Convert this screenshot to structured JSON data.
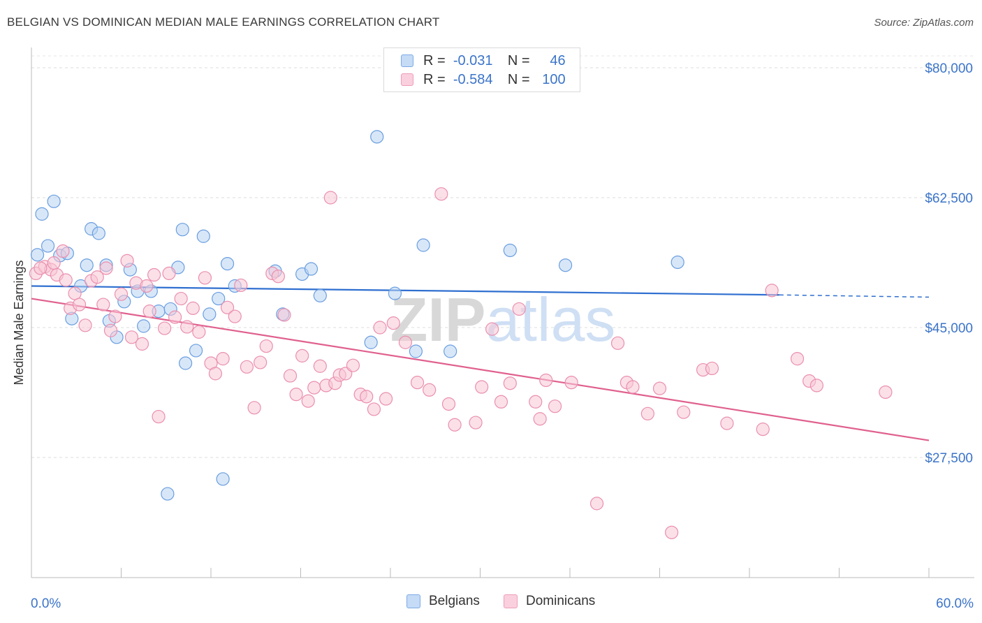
{
  "title": "BELGIAN VS DOMINICAN MEDIAN MALE EARNINGS CORRELATION CHART",
  "source": "Source: ZipAtlas.com",
  "watermark": "ZIPatlas",
  "legend": {
    "rows": [
      {
        "r_label": "R =",
        "r_value": "-0.031",
        "n_label": "N =",
        "n_value": "46",
        "color": "#a9c8ef"
      },
      {
        "r_label": "R =",
        "r_value": "-0.584",
        "n_label": "N =",
        "n_value": "100",
        "color": "#f5b8cb"
      }
    ]
  },
  "bottom_legend": [
    {
      "label": "Belgians",
      "color": "#a9c8ef"
    },
    {
      "label": "Dominicans",
      "color": "#f5b8cb"
    }
  ],
  "chart_data": {
    "type": "scatter",
    "ylabel": "Median Male Earnings",
    "xlabel": "",
    "xlim": [
      0,
      60
    ],
    "ylim": [
      10000,
      82000
    ],
    "x_tick_labels": {
      "left": "0.0%",
      "right": "60.0%"
    },
    "y_ticks": [
      {
        "value": 80000,
        "label": "$80,000"
      },
      {
        "value": 62500,
        "label": "$62,500"
      },
      {
        "value": 45000,
        "label": "$45,000"
      },
      {
        "value": 27500,
        "label": "$27,500"
      }
    ],
    "series": [
      {
        "name": "Belgians",
        "color": "#6a9ee0",
        "fill": "#b8d3f3",
        "trend": {
          "x0": 0,
          "y0": 50600,
          "x1": 50,
          "y1": 49400,
          "dash_to_x": 60,
          "dash_to_y": 49100,
          "color": "#2f6fd0"
        },
        "points": [
          [
            0.4,
            54800
          ],
          [
            0.7,
            60300
          ],
          [
            1.1,
            56000
          ],
          [
            1.5,
            62000
          ],
          [
            1.9,
            54700
          ],
          [
            2.4,
            55000
          ],
          [
            2.7,
            46200
          ],
          [
            3.3,
            50600
          ],
          [
            3.7,
            53400
          ],
          [
            4.0,
            58300
          ],
          [
            4.5,
            57700
          ],
          [
            5.0,
            53400
          ],
          [
            5.2,
            45900
          ],
          [
            5.7,
            43700
          ],
          [
            6.2,
            48500
          ],
          [
            6.6,
            52800
          ],
          [
            7.1,
            49900
          ],
          [
            7.5,
            45200
          ],
          [
            8.0,
            49900
          ],
          [
            8.5,
            47200
          ],
          [
            9.1,
            22600
          ],
          [
            9.3,
            47500
          ],
          [
            9.8,
            53100
          ],
          [
            10.1,
            58200
          ],
          [
            10.3,
            40200
          ],
          [
            11.0,
            41900
          ],
          [
            11.5,
            57300
          ],
          [
            11.9,
            46800
          ],
          [
            12.5,
            48900
          ],
          [
            12.8,
            24600
          ],
          [
            13.1,
            53600
          ],
          [
            13.6,
            50600
          ],
          [
            16.3,
            52600
          ],
          [
            16.8,
            46800
          ],
          [
            18.1,
            52200
          ],
          [
            18.7,
            52900
          ],
          [
            19.3,
            49300
          ],
          [
            22.7,
            43000
          ],
          [
            23.1,
            70700
          ],
          [
            24.3,
            49600
          ],
          [
            25.7,
            41800
          ],
          [
            26.2,
            56100
          ],
          [
            28.0,
            41800
          ],
          [
            32.0,
            55400
          ],
          [
            35.7,
            53400
          ],
          [
            43.2,
            53800
          ]
        ]
      },
      {
        "name": "Dominicans",
        "color": "#ea8fae",
        "fill": "#f8c6d6",
        "trend": {
          "x0": 0,
          "y0": 48900,
          "x1": 60,
          "y1": 29800,
          "color": "#e0608e"
        },
        "points": [
          [
            0.3,
            52300
          ],
          [
            0.9,
            53200
          ],
          [
            1.3,
            52800
          ],
          [
            1.7,
            52100
          ],
          [
            2.1,
            55300
          ],
          [
            2.3,
            51400
          ],
          [
            2.6,
            47600
          ],
          [
            2.9,
            49600
          ],
          [
            3.2,
            48100
          ],
          [
            3.6,
            45300
          ],
          [
            4.0,
            51300
          ],
          [
            4.4,
            51800
          ],
          [
            4.8,
            48100
          ],
          [
            5.3,
            44600
          ],
          [
            5.6,
            46500
          ],
          [
            6.0,
            49500
          ],
          [
            6.4,
            54000
          ],
          [
            6.7,
            43700
          ],
          [
            7.0,
            51000
          ],
          [
            7.4,
            42800
          ],
          [
            7.9,
            47200
          ],
          [
            8.2,
            52100
          ],
          [
            8.5,
            33000
          ],
          [
            8.9,
            44900
          ],
          [
            9.2,
            52300
          ],
          [
            9.6,
            46400
          ],
          [
            10.0,
            48900
          ],
          [
            10.4,
            45100
          ],
          [
            10.8,
            47600
          ],
          [
            11.2,
            44400
          ],
          [
            11.6,
            51700
          ],
          [
            12.0,
            40200
          ],
          [
            12.3,
            38800
          ],
          [
            12.8,
            40800
          ],
          [
            13.1,
            47700
          ],
          [
            13.6,
            46500
          ],
          [
            14.0,
            50700
          ],
          [
            14.4,
            39700
          ],
          [
            14.9,
            34200
          ],
          [
            15.3,
            40300
          ],
          [
            15.7,
            42500
          ],
          [
            16.1,
            52300
          ],
          [
            16.5,
            51900
          ],
          [
            16.9,
            46700
          ],
          [
            17.3,
            38500
          ],
          [
            17.7,
            36000
          ],
          [
            18.1,
            41200
          ],
          [
            18.5,
            35100
          ],
          [
            18.9,
            36900
          ],
          [
            19.3,
            39800
          ],
          [
            19.7,
            37200
          ],
          [
            20.0,
            62500
          ],
          [
            20.3,
            37500
          ],
          [
            20.6,
            38600
          ],
          [
            21.0,
            38800
          ],
          [
            21.5,
            39900
          ],
          [
            22.0,
            36000
          ],
          [
            22.4,
            35700
          ],
          [
            22.9,
            34000
          ],
          [
            23.3,
            45000
          ],
          [
            23.7,
            35400
          ],
          [
            24.2,
            45600
          ],
          [
            25.0,
            43000
          ],
          [
            25.8,
            37600
          ],
          [
            26.6,
            36600
          ],
          [
            27.4,
            63000
          ],
          [
            27.9,
            34700
          ],
          [
            28.3,
            31900
          ],
          [
            29.7,
            32200
          ],
          [
            30.1,
            37000
          ],
          [
            30.8,
            44800
          ],
          [
            31.4,
            35000
          ],
          [
            32.0,
            37500
          ],
          [
            32.6,
            47500
          ],
          [
            33.7,
            35000
          ],
          [
            34.0,
            32700
          ],
          [
            34.4,
            37900
          ],
          [
            35.0,
            34400
          ],
          [
            36.1,
            37600
          ],
          [
            37.8,
            21300
          ],
          [
            39.2,
            42900
          ],
          [
            39.8,
            37600
          ],
          [
            40.2,
            37000
          ],
          [
            41.2,
            33400
          ],
          [
            42.0,
            36800
          ],
          [
            42.8,
            17400
          ],
          [
            43.6,
            33600
          ],
          [
            44.9,
            39300
          ],
          [
            45.5,
            39500
          ],
          [
            46.5,
            32100
          ],
          [
            48.9,
            31300
          ],
          [
            49.5,
            50000
          ],
          [
            51.2,
            40800
          ],
          [
            52.0,
            37800
          ],
          [
            52.5,
            37200
          ],
          [
            57.1,
            36300
          ],
          [
            0.6,
            53000
          ],
          [
            1.5,
            53700
          ],
          [
            5.0,
            53000
          ],
          [
            7.7,
            50600
          ]
        ]
      }
    ]
  }
}
